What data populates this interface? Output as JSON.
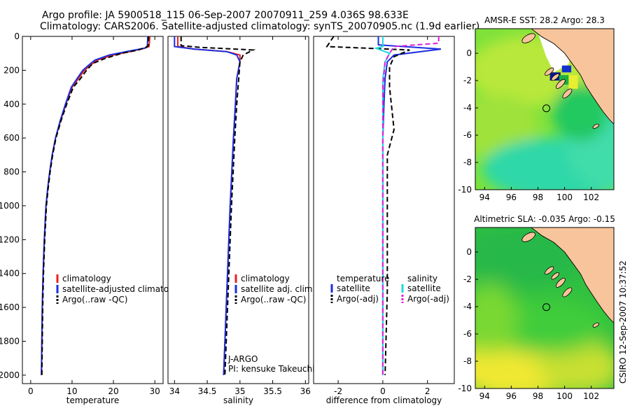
{
  "title_line1": "Argo profile: JA 5900518_115 06-Sep-2007 20070911_259 4.036S 98.633E",
  "title_line2": "Climatology: CARS2006. Satellite-adjusted climatology: synTS_20070905.nc (1.9d earlier)",
  "side_label": "CSIRO 12-Sep-2007 10:37:52",
  "colors": {
    "climatology": "#e8221a",
    "satellite": "#1a2ee0",
    "argo": "#000000",
    "satellite_sal": "#22d8e0",
    "argo_sal": "#e020d8"
  },
  "chart_data": [
    {
      "type": "line",
      "xlabel": "temperature",
      "ylim": [
        2050,
        0
      ],
      "xlim": [
        -2,
        32
      ],
      "xticks": [
        0,
        10,
        20,
        30
      ],
      "yticks": [
        0,
        200,
        400,
        600,
        800,
        1000,
        1200,
        1400,
        1600,
        1800,
        2000
      ],
      "series": [
        {
          "name": "climatology",
          "color": "#e8221a",
          "x": [
            28.8,
            28.6,
            27.5,
            24,
            20,
            16,
            14.5,
            13,
            11.5,
            10,
            8.5,
            7.2,
            6,
            5.2,
            4.6,
            4.1,
            3.7,
            3.3,
            3,
            2.8,
            2.6
          ],
          "y": [
            0,
            60,
            70,
            90,
            110,
            140,
            170,
            200,
            250,
            300,
            400,
            500,
            600,
            700,
            800,
            900,
            1000,
            1200,
            1400,
            1600,
            2000
          ]
        },
        {
          "name": "satellite-adjusted climatology",
          "color": "#1a2ee0",
          "x": [
            28.3,
            28.2,
            27.5,
            23,
            19,
            15.5,
            14,
            12.6,
            11.2,
            9.8,
            8.4,
            7.1,
            6,
            5.2,
            4.6,
            4.1,
            3.7,
            3.3,
            3,
            2.8,
            2.6
          ],
          "y": [
            0,
            60,
            70,
            90,
            110,
            140,
            170,
            200,
            250,
            300,
            400,
            500,
            600,
            700,
            800,
            900,
            1000,
            1200,
            1400,
            1600,
            2000
          ]
        },
        {
          "name": "Argo(..raw -QC)",
          "color": "#000000",
          "dash": true,
          "x": [
            28.5,
            28.4,
            27.8,
            26,
            22,
            18,
            15,
            13.5,
            12,
            10.3,
            8.7,
            7.3,
            6.1,
            5.3,
            4.7,
            4.2,
            3.8,
            3.4,
            3.1,
            2.9,
            2.7
          ],
          "y": [
            0,
            55,
            65,
            80,
            100,
            130,
            160,
            200,
            250,
            300,
            400,
            500,
            600,
            700,
            800,
            900,
            1000,
            1200,
            1400,
            1600,
            2000
          ]
        }
      ],
      "legend": [
        {
          "label": "climatology",
          "color": "#e8221a",
          "dash": false
        },
        {
          "label": "satellite-adjusted climatology",
          "color": "#1a2ee0",
          "dash": false
        },
        {
          "label": "Argo(..raw -QC)",
          "color": "#000000",
          "dash": true
        }
      ]
    },
    {
      "type": "line",
      "xlabel": "salinity",
      "ylim": [
        2050,
        0
      ],
      "xlim": [
        33.9,
        36.05
      ],
      "xticks": [
        34,
        34.5,
        35,
        35.5,
        36
      ],
      "yticks": [],
      "series": [
        {
          "name": "climatology",
          "color": "#e8221a",
          "x": [
            34.05,
            34.05,
            34.3,
            34.8,
            35.0,
            35.0,
            34.95,
            34.93,
            34.9,
            34.85,
            34.8,
            34.75
          ],
          "y": [
            0,
            60,
            75,
            90,
            110,
            150,
            250,
            400,
            600,
            1000,
            1500,
            2000
          ]
        },
        {
          "name": "satellite adj. clim.",
          "color": "#1a2ee0",
          "x": [
            34.0,
            34.0,
            34.3,
            34.8,
            34.95,
            35.0,
            34.95,
            34.93,
            34.9,
            34.85,
            34.8,
            34.75
          ],
          "y": [
            0,
            60,
            75,
            90,
            110,
            150,
            250,
            400,
            600,
            1000,
            1500,
            2000
          ]
        },
        {
          "name": "Argo(..raw -QC)",
          "color": "#000000",
          "dash": true,
          "x": [
            34.1,
            34.1,
            34.4,
            35.2,
            35.05,
            35.0,
            34.98,
            34.95,
            34.92,
            34.87,
            34.82,
            34.77
          ],
          "y": [
            0,
            55,
            65,
            80,
            110,
            150,
            250,
            400,
            600,
            1000,
            1500,
            2000
          ]
        }
      ],
      "legend": [
        {
          "label": "climatology",
          "color": "#e8221a",
          "dash": false
        },
        {
          "label": "satellite adj. clim.",
          "color": "#1a2ee0",
          "dash": false
        },
        {
          "label": "Argo(..raw -QC)",
          "color": "#000000",
          "dash": true
        }
      ],
      "annotations": [
        "J-ARGO",
        "PI: kensuke Takeuchi"
      ]
    },
    {
      "type": "line",
      "xlabel": "difference from climatology",
      "ylim": [
        2050,
        0
      ],
      "xlim": [
        -3.1,
        3.2
      ],
      "xticks": [
        -2,
        0,
        2
      ],
      "yticks": [],
      "series": [
        {
          "name": "temperature satellite",
          "color": "#1a2ee0",
          "x": [
            -0.2,
            -0.2,
            2.6,
            0.5,
            0.2,
            0.1,
            0.05,
            0,
            0,
            0,
            0
          ],
          "y": [
            0,
            50,
            75,
            110,
            150,
            250,
            400,
            600,
            1000,
            1500,
            2000
          ]
        },
        {
          "name": "temperature Argo(-adj)",
          "color": "#000000",
          "dash": true,
          "x": [
            -2.2,
            -2.5,
            1.2,
            0.5,
            0.3,
            0.3,
            0.5,
            0.2,
            0.2,
            0.2,
            0.1
          ],
          "y": [
            0,
            60,
            80,
            120,
            180,
            300,
            550,
            700,
            1000,
            1500,
            2000
          ]
        },
        {
          "name": "salinity satellite",
          "color": "#22d8e0",
          "x": [
            0,
            0,
            -0.3,
            0.3,
            0.1,
            0,
            0,
            0,
            0
          ],
          "y": [
            0,
            60,
            70,
            100,
            150,
            250,
            600,
            1200,
            2000
          ]
        },
        {
          "name": "salinity Argo(-adj)",
          "color": "#e020d8",
          "dash": true,
          "x": [
            2.5,
            2.5,
            0.5,
            0.3,
            0.1,
            0,
            0,
            0,
            0
          ],
          "y": [
            0,
            40,
            60,
            100,
            150,
            300,
            700,
            1200,
            2000
          ]
        }
      ],
      "legend_header": [
        "temperature",
        "salinity"
      ],
      "legend": [
        {
          "label": "satellite",
          "color": "#1a2ee0",
          "dash": false
        },
        {
          "label": "Argo(-adj)",
          "color": "#000000",
          "dash": true
        },
        {
          "label": "satellite",
          "color": "#22d8e0",
          "dash": false
        },
        {
          "label": "Argo(-adj)",
          "color": "#e020d8",
          "dash": true
        }
      ]
    },
    {
      "type": "heatmap",
      "title": "AMSR-E SST: 28.2 Argo: 28.3",
      "xlim": [
        93.3,
        103.7
      ],
      "ylim": [
        -10,
        1.8
      ],
      "xticks": [
        94,
        96,
        98,
        100,
        102
      ],
      "yticks": [
        0,
        -2,
        -4,
        -6,
        -8,
        -10
      ],
      "marker": [
        98.633,
        -4.036
      ]
    },
    {
      "type": "heatmap",
      "title": "Altimetric SLA: -0.035 Argo: -0.15",
      "xlim": [
        93.3,
        103.7
      ],
      "ylim": [
        -10,
        1.8
      ],
      "xticks": [
        94,
        96,
        98,
        100,
        102
      ],
      "yticks": [
        0,
        -2,
        -4,
        -6,
        -8,
        -10
      ],
      "marker": [
        98.633,
        -4.036
      ]
    }
  ]
}
